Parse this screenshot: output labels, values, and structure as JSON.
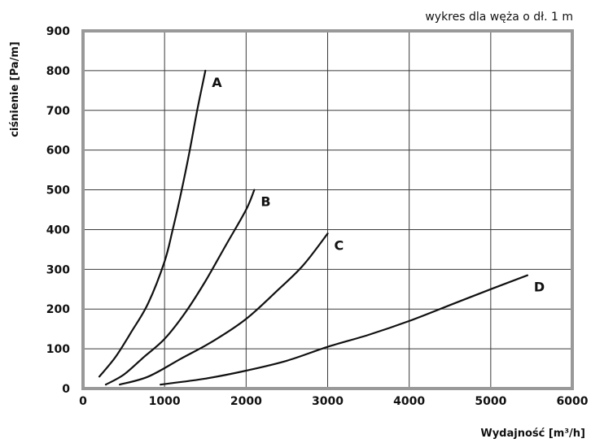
{
  "chart_data": {
    "type": "line",
    "title": "",
    "note": "wykres dla węża o dł. 1 m",
    "xlabel": "Wydajność [m³/h]",
    "ylabel": "ciśnienie [Pa/m]",
    "xlim": [
      0,
      6000
    ],
    "ylim": [
      0,
      900
    ],
    "xticks": [
      0,
      1000,
      2000,
      3000,
      4000,
      5000,
      6000
    ],
    "yticks": [
      0,
      100,
      200,
      300,
      400,
      500,
      600,
      700,
      800,
      900
    ],
    "grid": true,
    "legend": "labels-at-curve-ends",
    "series": [
      {
        "name": "A",
        "x": [
          200,
          400,
          600,
          800,
          1000,
          1100,
          1200,
          1300,
          1400,
          1500
        ],
        "y": [
          30,
          80,
          145,
          215,
          320,
          400,
          490,
          590,
          700,
          800
        ]
      },
      {
        "name": "B",
        "x": [
          280,
          500,
          750,
          1000,
          1250,
          1500,
          1750,
          2000,
          2100
        ],
        "y": [
          10,
          35,
          80,
          125,
          190,
          270,
          360,
          450,
          500
        ]
      },
      {
        "name": "C",
        "x": [
          450,
          800,
          1200,
          1600,
          2000,
          2400,
          2700,
          3000
        ],
        "y": [
          10,
          30,
          75,
          120,
          175,
          250,
          310,
          390
        ]
      },
      {
        "name": "D",
        "x": [
          950,
          1500,
          2000,
          2500,
          3000,
          3500,
          4000,
          4500,
          5000,
          5450
        ],
        "y": [
          10,
          25,
          45,
          70,
          105,
          135,
          170,
          210,
          250,
          285
        ]
      }
    ]
  }
}
